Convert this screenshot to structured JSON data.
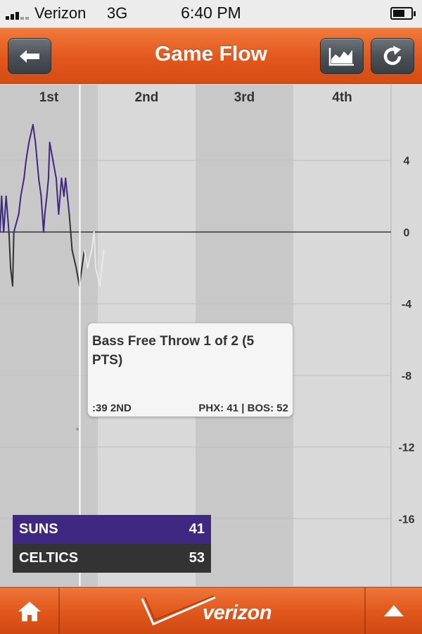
{
  "status_bar": {
    "carrier": "Verizon",
    "network": "3G",
    "time": "6:40 PM",
    "battery_level": 0.55
  },
  "header": {
    "title": "Game Flow",
    "back_icon": "arrow-left-icon",
    "chart_icon": "area-chart-icon",
    "refresh_icon": "refresh-icon"
  },
  "chart_data": {
    "type": "line",
    "categories": [
      "1st",
      "2nd",
      "3rd",
      "4th"
    ],
    "y_ticks": [
      "4",
      "0",
      "-4",
      "-8",
      "-12",
      "-16"
    ],
    "ylim": [
      -20,
      8
    ],
    "grid": true,
    "colors": {
      "suns": "#3f2882",
      "celtics": "#333333",
      "after_cursor": "#e8e8e8",
      "cursor": "#ffffff"
    },
    "series": [
      {
        "name": "",
        "x": [
          0,
          0.2,
          0.45,
          0.75,
          1.1,
          1.3,
          1.55,
          1.7,
          2.3,
          2.55,
          2.95,
          3.2,
          3.55,
          4.05,
          4.35,
          4.55,
          4.75,
          5.05,
          5.35,
          5.5,
          5.75,
          5.95,
          6.1,
          6.5,
          6.9,
          7.2,
          7.55,
          7.85,
          8.05,
          8.5,
          8.85,
          9.35,
          9.75,
          10.35,
          10.75,
          11.25,
          11.55,
          11.75,
          12.25,
          12.75
        ],
        "y": [
          0,
          2,
          0,
          2,
          0,
          -2,
          -3,
          0,
          1,
          2,
          3,
          4,
          5,
          6,
          5,
          4,
          3,
          2,
          0,
          1,
          2,
          3,
          5,
          4,
          3,
          1,
          3,
          2,
          3,
          1,
          -1,
          -2,
          -3,
          -1,
          -2,
          -1,
          0,
          -2,
          -3,
          -1
        ]
      }
    ],
    "cursor_x": 9.8,
    "hover_point": {
      "x": 9.5,
      "y": -11
    }
  },
  "tooltip": {
    "title": "Bass Free Throw 1 of 2 (5 PTS)",
    "time": ":39 2ND",
    "score": "PHX: 41 | BOS: 52"
  },
  "scorebox": {
    "teams": [
      {
        "name": "SUNS",
        "points": "41",
        "color": "#3f2882"
      },
      {
        "name": "CELTICS",
        "points": "53",
        "color": "#333333"
      }
    ]
  },
  "bottom_bar": {
    "brand": "verizon",
    "home_icon": "home-icon",
    "up_icon": "triangle-up-icon",
    "logo_icon": "verizon-check-icon"
  }
}
